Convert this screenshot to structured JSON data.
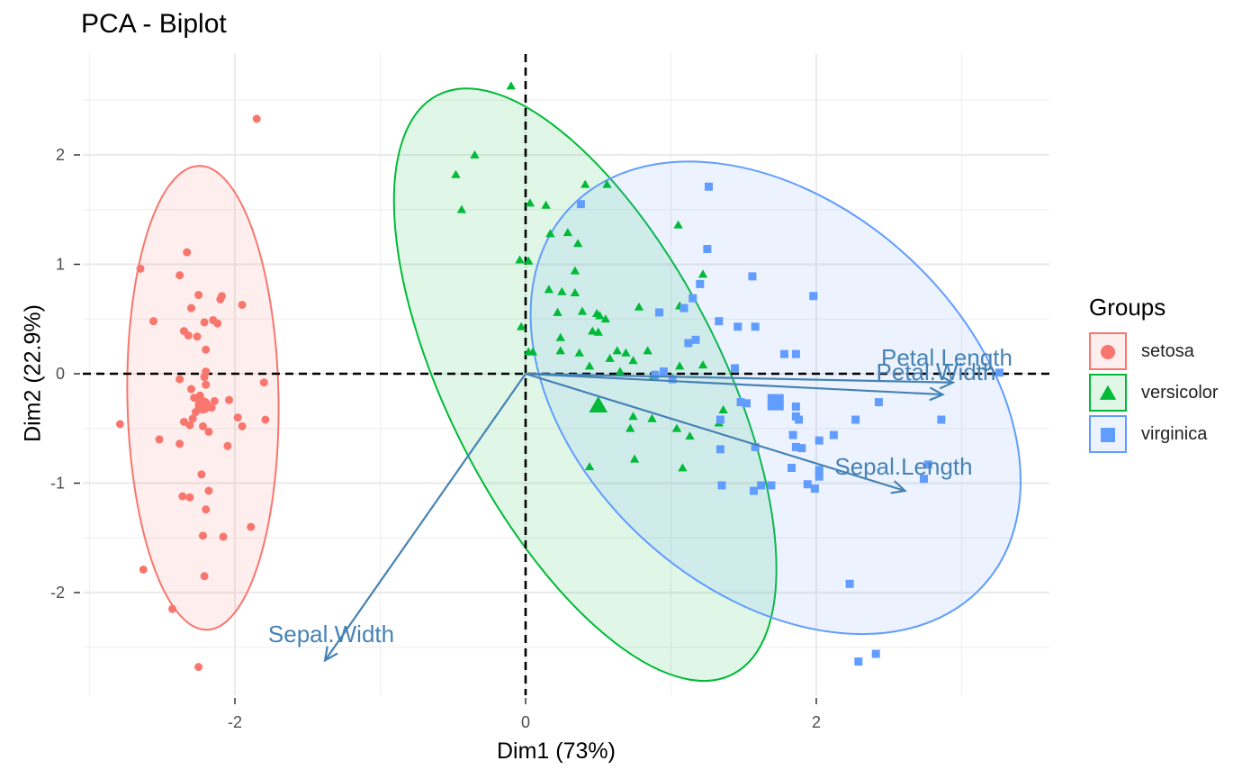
{
  "title": "PCA - Biplot",
  "chart_data": {
    "type": "scatter",
    "title": "PCA - Biplot",
    "xlabel": "Dim1 (73%)",
    "ylabel": "Dim2 (22.9%)",
    "xlim": [
      -3.0,
      3.6
    ],
    "ylim": [
      -2.9,
      2.9
    ],
    "x_ticks": [
      -2,
      0,
      2
    ],
    "y_ticks": [
      -2,
      -1,
      0,
      1,
      2
    ],
    "x_tick_labels": [
      "-2",
      "0",
      "2"
    ],
    "y_tick_labels": [
      "-2",
      "-1",
      "0",
      "1",
      "2"
    ],
    "grid": true,
    "legend_position": "right",
    "legend_title": "Groups",
    "reference_lines": {
      "x": 0,
      "y": 0,
      "style": "dashed"
    },
    "series": [
      {
        "name": "setosa",
        "color": "#F8766D",
        "shape": "circle",
        "centroid": [
          -2.22,
          -0.29
        ],
        "ellipse": {
          "cx": -2.22,
          "cy": -0.22,
          "rx": 0.52,
          "ry": 2.12,
          "angle": -1
        },
        "points": [
          [
            -1.85,
            2.33
          ],
          [
            -2.33,
            1.11
          ],
          [
            -2.65,
            0.96
          ],
          [
            -2.38,
            0.9
          ],
          [
            -2.09,
            0.71
          ],
          [
            -2.1,
            0.68
          ],
          [
            -2.25,
            0.72
          ],
          [
            -1.95,
            0.63
          ],
          [
            -2.3,
            0.6
          ],
          [
            -2.56,
            0.48
          ],
          [
            -2.21,
            0.47
          ],
          [
            -2.15,
            0.49
          ],
          [
            -2.12,
            0.46
          ],
          [
            -2.35,
            0.39
          ],
          [
            -2.32,
            0.35
          ],
          [
            -2.26,
            0.34
          ],
          [
            -2.2,
            0.22
          ],
          [
            -2.2,
            0.02
          ],
          [
            -2.38,
            -0.05
          ],
          [
            -2.21,
            -0.03
          ],
          [
            -2.3,
            -0.14
          ],
          [
            -2.2,
            -0.1
          ],
          [
            -2.28,
            -0.22
          ],
          [
            -2.24,
            -0.2
          ],
          [
            -2.14,
            -0.25
          ],
          [
            -2.22,
            -0.28
          ],
          [
            -2.24,
            -0.31
          ],
          [
            -2.27,
            -0.35
          ],
          [
            -2.04,
            -0.24
          ],
          [
            -2.16,
            -0.31
          ],
          [
            -2.29,
            -0.41
          ],
          [
            -2.35,
            -0.44
          ],
          [
            -2.31,
            -0.47
          ],
          [
            -2.22,
            -0.48
          ],
          [
            -2.18,
            -0.53
          ],
          [
            -1.8,
            -0.08
          ],
          [
            -1.98,
            -0.4
          ],
          [
            -1.95,
            -0.48
          ],
          [
            -1.79,
            -0.42
          ],
          [
            -2.05,
            -0.66
          ],
          [
            -2.38,
            -0.64
          ],
          [
            -2.52,
            -0.6
          ],
          [
            -2.79,
            -0.46
          ],
          [
            -2.23,
            -0.92
          ],
          [
            -2.18,
            -1.07
          ],
          [
            -2.36,
            -1.12
          ],
          [
            -2.31,
            -1.13
          ],
          [
            -2.2,
            -1.24
          ],
          [
            -1.89,
            -1.4
          ],
          [
            -2.08,
            -1.49
          ],
          [
            -2.22,
            -1.48
          ],
          [
            -2.63,
            -1.79
          ],
          [
            -2.21,
            -1.85
          ],
          [
            -2.43,
            -2.15
          ],
          [
            -2.25,
            -2.68
          ]
        ]
      },
      {
        "name": "versicolor",
        "color": "#00BA38",
        "shape": "triangle",
        "centroid": [
          0.5,
          -0.29
        ],
        "ellipse": {
          "cx": 0.41,
          "cy": -0.1,
          "rx": 0.94,
          "ry": 2.97,
          "angle": -27
        },
        "points": [
          [
            -0.1,
            2.63
          ],
          [
            -0.35,
            2
          ],
          [
            -0.48,
            1.82
          ],
          [
            -0.44,
            1.5
          ],
          [
            0.41,
            1.73
          ],
          [
            0.56,
            1.73
          ],
          [
            0.03,
            1.56
          ],
          [
            0.14,
            1.54
          ],
          [
            0.29,
            1.29
          ],
          [
            0.17,
            1.28
          ],
          [
            1.05,
            1.36
          ],
          [
            0.36,
            1.19
          ],
          [
            -0.04,
            1.04
          ],
          [
            0.02,
            1.03
          ],
          [
            0.34,
            0.94
          ],
          [
            0.34,
            0.74
          ],
          [
            1.22,
            0.91
          ],
          [
            0.16,
            0.77
          ],
          [
            0.25,
            0.75
          ],
          [
            1.06,
            0.62
          ],
          [
            0.22,
            0.56
          ],
          [
            0.39,
            0.57
          ],
          [
            0.49,
            0.55
          ],
          [
            0.51,
            0.53
          ],
          [
            0.55,
            0.5
          ],
          [
            0.78,
            0.61
          ],
          [
            -0.03,
            0.43
          ],
          [
            0.24,
            0.33
          ],
          [
            0.46,
            0.39
          ],
          [
            0.5,
            0.38
          ],
          [
            0.24,
            0.21
          ],
          [
            0.02,
            0.2
          ],
          [
            0.05,
            0.2
          ],
          [
            0.37,
            0.19
          ],
          [
            0.63,
            0.21
          ],
          [
            0.69,
            0.19
          ],
          [
            0.84,
            0.21
          ],
          [
            0.58,
            0.14
          ],
          [
            0.74,
            0.12
          ],
          [
            1.22,
            0.08
          ],
          [
            0.44,
            0.07
          ],
          [
            0.65,
            0.02
          ],
          [
            0.88,
            -0.02
          ],
          [
            1.01,
            -0.04
          ],
          [
            1.06,
            0.07
          ],
          [
            1.36,
            -0.33
          ],
          [
            0.74,
            -0.39
          ],
          [
            0.87,
            -0.41
          ],
          [
            1.04,
            -0.5
          ],
          [
            0.72,
            -0.5
          ],
          [
            1.13,
            -0.57
          ],
          [
            1.33,
            -0.45
          ],
          [
            0.75,
            -0.78
          ],
          [
            0.44,
            -0.85
          ],
          [
            1.08,
            -0.86
          ]
        ]
      },
      {
        "name": "virginica",
        "color": "#619CFF",
        "shape": "square",
        "centroid": [
          1.72,
          -0.26
        ],
        "ellipse": {
          "cx": 1.72,
          "cy": -0.22,
          "rx": 1.33,
          "ry": 2.56,
          "angle": -48
        },
        "points": [
          [
            1.26,
            1.71
          ],
          [
            0.38,
            1.55
          ],
          [
            1.25,
            1.14
          ],
          [
            1.56,
            0.89
          ],
          [
            1.98,
            0.71
          ],
          [
            1.2,
            0.82
          ],
          [
            1.15,
            0.69
          ],
          [
            1.09,
            0.6
          ],
          [
            0.92,
            0.56
          ],
          [
            1.33,
            0.48
          ],
          [
            1.58,
            0.43
          ],
          [
            1.46,
            0.43
          ],
          [
            1.12,
            0.28
          ],
          [
            1.17,
            0.31
          ],
          [
            1.78,
            0.18
          ],
          [
            1.86,
            0.18
          ],
          [
            0.95,
            0.02
          ],
          [
            0.89,
            -0.01
          ],
          [
            1.01,
            -0.05
          ],
          [
            1.44,
            0.05
          ],
          [
            1.71,
            -0.26
          ],
          [
            1.48,
            -0.26
          ],
          [
            1.52,
            -0.27
          ],
          [
            1.86,
            -0.3
          ],
          [
            1.86,
            -0.39
          ],
          [
            1.88,
            -0.42
          ],
          [
            2.27,
            -0.42
          ],
          [
            2.43,
            -0.26
          ],
          [
            2.86,
            -0.42
          ],
          [
            3.26,
            0.01
          ],
          [
            2.02,
            -0.61
          ],
          [
            2.12,
            -0.56
          ],
          [
            1.34,
            -0.42
          ],
          [
            1.58,
            -0.67
          ],
          [
            1.84,
            -0.56
          ],
          [
            1.86,
            -0.67
          ],
          [
            1.9,
            -0.68
          ],
          [
            1.34,
            -0.69
          ],
          [
            1.83,
            -0.86
          ],
          [
            2.02,
            -0.88
          ],
          [
            2.02,
            -0.94
          ],
          [
            1.62,
            -1.02
          ],
          [
            1.69,
            -1.02
          ],
          [
            1.57,
            -1.07
          ],
          [
            1.35,
            -1.02
          ],
          [
            1.94,
            -1.01
          ],
          [
            1.99,
            -1.05
          ],
          [
            2.74,
            -0.96
          ],
          [
            2.77,
            -0.83
          ],
          [
            2.23,
            -1.92
          ],
          [
            2.29,
            -2.63
          ],
          [
            2.41,
            -2.56
          ]
        ]
      }
    ],
    "arrows": [
      {
        "name": "Petal.Length",
        "x": 2.94,
        "y": -0.08
      },
      {
        "name": "Petal.Width",
        "x": 2.87,
        "y": -0.19
      },
      {
        "name": "Sepal.Length",
        "x": 2.61,
        "y": -1.07
      },
      {
        "name": "Sepal.Width",
        "x": -1.38,
        "y": -2.62
      }
    ],
    "arrow_color": "#4682B4"
  }
}
